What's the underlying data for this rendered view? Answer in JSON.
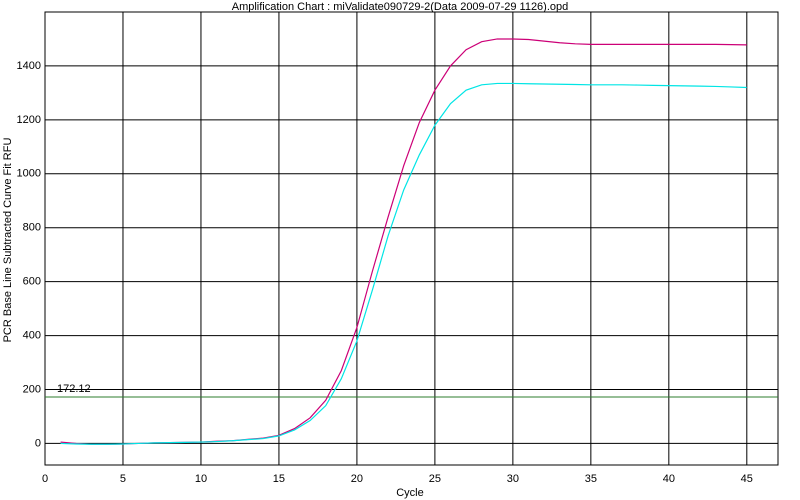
{
  "chart_data": {
    "type": "line",
    "title": "Amplification Chart : miValidate090729-2(Data 2009-07-29 1126).opd",
    "x_label": "Cycle",
    "y_label": "PCR Base Line Subtracted Curve Fit RFU",
    "x": [
      1,
      2,
      3,
      4,
      5,
      6,
      7,
      8,
      9,
      10,
      11,
      12,
      13,
      14,
      15,
      16,
      17,
      18,
      19,
      20,
      21,
      22,
      23,
      24,
      25,
      26,
      27,
      28,
      29,
      30,
      31,
      32,
      33,
      34,
      35,
      36,
      37,
      38,
      39,
      40,
      41,
      42,
      43,
      44,
      45
    ],
    "series": [
      {
        "color": "#cc0077",
        "values": [
          5,
          0,
          -3,
          -3,
          -2,
          0,
          2,
          3,
          4,
          5,
          8,
          10,
          15,
          20,
          30,
          55,
          95,
          160,
          270,
          430,
          640,
          840,
          1030,
          1190,
          1310,
          1400,
          1460,
          1490,
          1500,
          1500,
          1498,
          1492,
          1486,
          1482,
          1480,
          1480,
          1480,
          1480,
          1480,
          1480,
          1480,
          1480,
          1480,
          1479,
          1478
        ]
      },
      {
        "color": "#00e5e5",
        "values": [
          0,
          -2,
          -3,
          -3,
          -2,
          0,
          2,
          3,
          4,
          5,
          7,
          10,
          14,
          18,
          28,
          50,
          85,
          140,
          240,
          380,
          570,
          770,
          940,
          1070,
          1180,
          1260,
          1310,
          1330,
          1335,
          1335,
          1334,
          1333,
          1332,
          1331,
          1330,
          1330,
          1330,
          1329,
          1328,
          1327,
          1326,
          1325,
          1324,
          1322,
          1320
        ]
      }
    ],
    "threshold": 172.12,
    "threshold_color": "#2e7d2e",
    "xlim": [
      0,
      47
    ],
    "ylim": [
      -80,
      1600
    ],
    "xticks": [
      0,
      5,
      10,
      15,
      20,
      25,
      30,
      35,
      40,
      45
    ],
    "yticks": [
      0,
      200,
      400,
      600,
      800,
      1000,
      1200,
      1400
    ],
    "grid": true
  }
}
